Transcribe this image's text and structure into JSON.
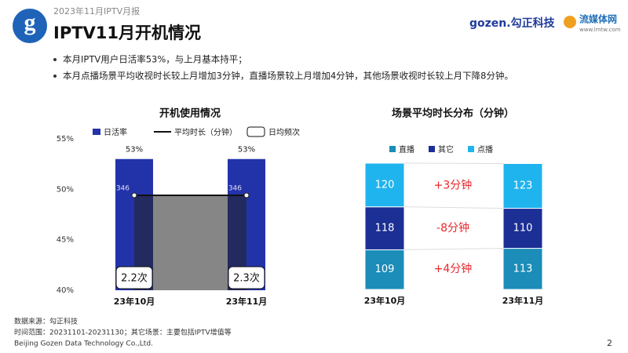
{
  "header": {
    "report": "2023年11月IPTV月报",
    "title": "IPTV11月开机情况",
    "logo": "gozen.勾正科技",
    "logo2": "流媒体网",
    "logo2_url": "www.lmtw.com"
  },
  "bullets": [
    "本月IPTV用户日活率53%，与上月基本持平；",
    "本月点播场景平均收视时长较上月增加3分钟，直播场景较上月增加4分钟，其他场景收视时长较上月下降8分钟。"
  ],
  "footer": {
    "source": "数据来源：勾正科技",
    "note": "时间范围：20231101-20231130；其它场景：主要包括IPTV增值等",
    "company": "Beijing Gozen Data Technology Co.,Ltd.",
    "page": "2"
  },
  "chart_data": [
    {
      "type": "bar_line",
      "title": "开机使用情况",
      "categories": [
        "23年10月",
        "23年11月"
      ],
      "series": [
        {
          "name": "日活率",
          "color": "#2233aa",
          "values": [
            53,
            53
          ],
          "value_labels": [
            "53%",
            "53%"
          ]
        },
        {
          "name": "平均时长（分钟）",
          "color": "#111111",
          "values": [
            346,
            346
          ],
          "axis": "y2"
        },
        {
          "name": "日均频次",
          "color": "#111111",
          "values": [
            2.2,
            2.3
          ],
          "value_labels": [
            "2.2次",
            "2.3次"
          ]
        }
      ],
      "ylim": [
        40,
        55
      ],
      "yticks": [
        {
          "value": 40,
          "label": "40%"
        },
        {
          "value": 45,
          "label": "45%"
        },
        {
          "value": 50,
          "label": "50%"
        },
        {
          "value": 55,
          "label": "55%"
        }
      ],
      "y2lim": [
        0,
        552
      ]
    },
    {
      "type": "stacked_bar",
      "title": "场景平均时长分布（分钟）",
      "categories": [
        "23年10月",
        "23年11月"
      ],
      "series": [
        {
          "name": "直播",
          "color": "#1b8db8",
          "values": [
            109,
            113
          ]
        },
        {
          "name": "其它",
          "color": "#1c2f95",
          "values": [
            118,
            110
          ]
        },
        {
          "name": "点播",
          "color": "#20b4ee",
          "values": [
            120,
            123
          ]
        }
      ],
      "annotations": [
        "+4分钟",
        "-8分钟",
        "+3分钟"
      ],
      "annotation_color": "#e8262a"
    }
  ]
}
